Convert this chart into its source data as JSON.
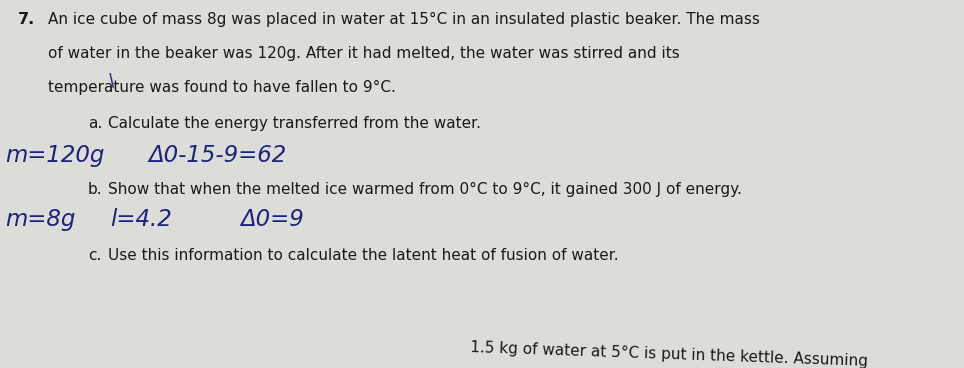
{
  "background_color": "#dcdcd8",
  "question_number": "7.",
  "q_line1": "An ice cube of mass 8g was placed in water at 15°C in an insulated plastic beaker. The mass",
  "q_line2": "of water in the beaker was 120g. After it had melted, the water was stirred and its",
  "q_line3": "temperature was found to have fallen to 9°C.",
  "a_label": "a.",
  "a_text": "Calculate the energy transferred from the water.",
  "a_hw1": "m=120g",
  "a_hw2": "Δ0-15-9=62",
  "b_label": "b.",
  "b_text": "Show that when the melted ice warmed from 0°C to 9°C, it gained 300 J of energy.",
  "b_hw1": "m=8g",
  "b_hw2": "l=4.2",
  "b_hw3": "Δ0=9",
  "c_label": "c.",
  "c_text": "Use this information to calculate the latent heat of fusion of water.",
  "bottom_text": "1.5 kg of water at 5°C is put in the kettle. Assuming",
  "printed_color": "#1a1a1a",
  "hand_color": "#1a237e",
  "fs_print": 11.0,
  "fs_hand": 16.5,
  "fs_qnum": 11.5
}
